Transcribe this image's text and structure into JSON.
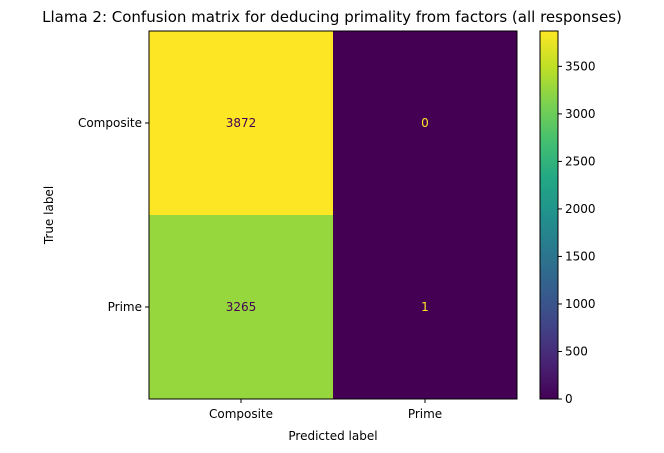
{
  "chart_data": {
    "type": "heatmap",
    "title": "Llama 2: Confusion matrix for deducing primality from factors (all responses)",
    "xlabel": "Predicted label",
    "ylabel": "True label",
    "x_categories": [
      "Composite",
      "Prime"
    ],
    "y_categories": [
      "Composite",
      "Prime"
    ],
    "values": [
      [
        3872,
        0
      ],
      [
        3265,
        1
      ]
    ],
    "colormap": "viridis",
    "colorbar": {
      "range": [
        0,
        3872
      ],
      "ticks": [
        0,
        500,
        1000,
        1500,
        2000,
        2500,
        3000,
        3500
      ]
    }
  }
}
